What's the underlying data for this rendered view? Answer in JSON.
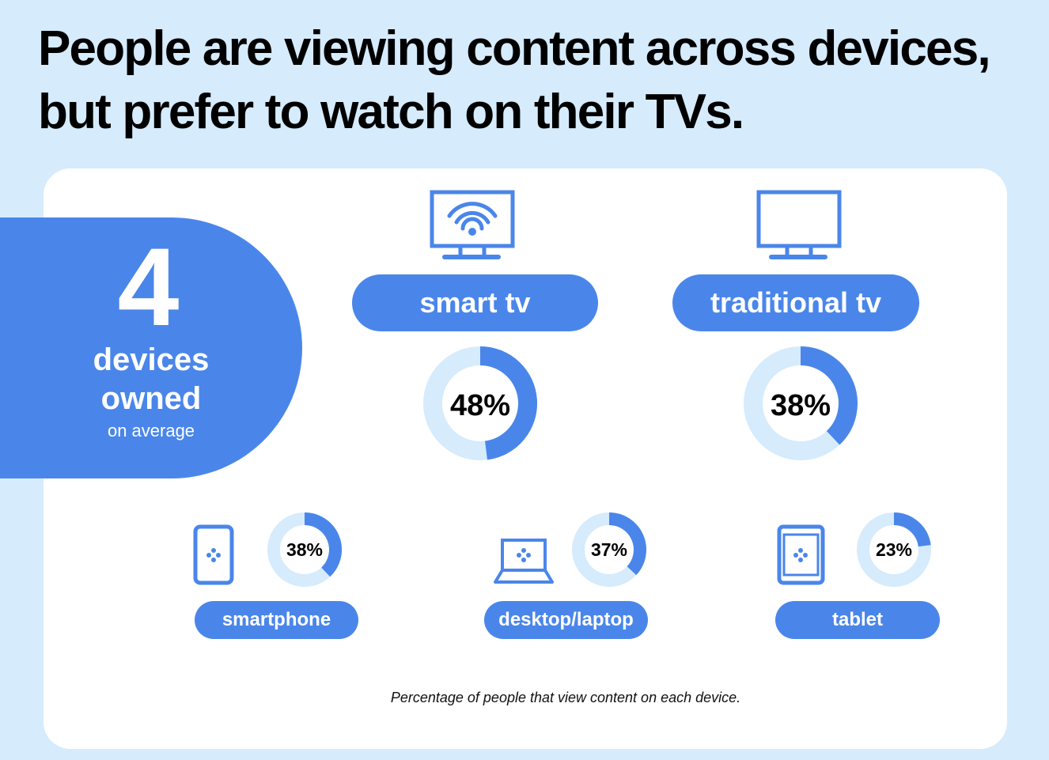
{
  "headline": "People are viewing content across devices, but prefer to watch on their TVs.",
  "owned": {
    "number": "4",
    "line1": "devices",
    "line2": "owned",
    "line3": "on average"
  },
  "colors": {
    "accent": "#4a86ea",
    "track": "#d6ebfc",
    "background": "#d6ebfc",
    "card": "#ffffff"
  },
  "chart_data": {
    "type": "donut",
    "title": "",
    "note": "Percentage of people that view content on each device.",
    "unit": "%",
    "categories": [
      "smart tv",
      "traditional tv",
      "smartphone",
      "desktop/laptop",
      "tablet"
    ],
    "values": [
      48,
      38,
      38,
      37,
      23
    ],
    "labels": [
      "48%",
      "38%",
      "38%",
      "37%",
      "23%"
    ],
    "icons": [
      "smart-tv-icon",
      "tv-icon",
      "smartphone-icon",
      "laptop-icon",
      "tablet-icon"
    ]
  }
}
